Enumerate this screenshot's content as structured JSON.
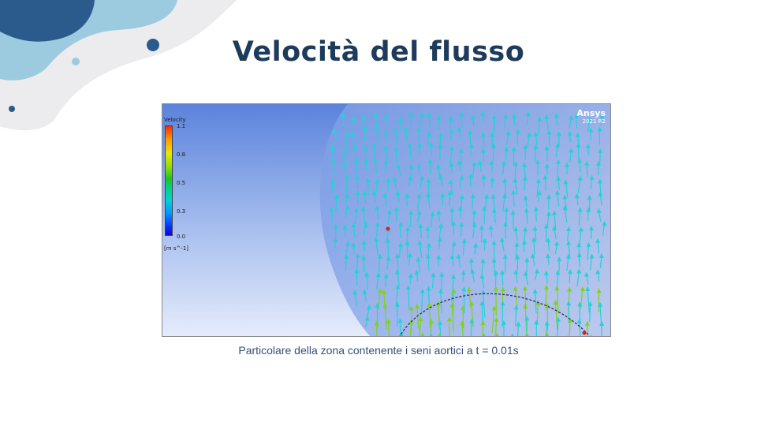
{
  "slide": {
    "title": "Velocità del flusso",
    "caption": "Particolare della zona contenente  i seni aortici a t = 0.01s"
  },
  "figure": {
    "legend_title": "Velocity",
    "ticks": [
      "1.1",
      "0.8",
      "0.5",
      "0.3",
      "0.0"
    ],
    "unit": "[m s^-1]",
    "brand_name": "Ansys",
    "brand_version": "2021 R2",
    "range": [
      0.0,
      1.1
    ]
  },
  "colors": {
    "title": "#1f3b5c",
    "caption": "#34507a",
    "deco_dark": "#2b5b8c",
    "deco_light": "#9ccbe0",
    "deco_grey": "#ececee",
    "arrow_cyan": "#23d2d6",
    "arrow_green": "#7fd21a"
  }
}
